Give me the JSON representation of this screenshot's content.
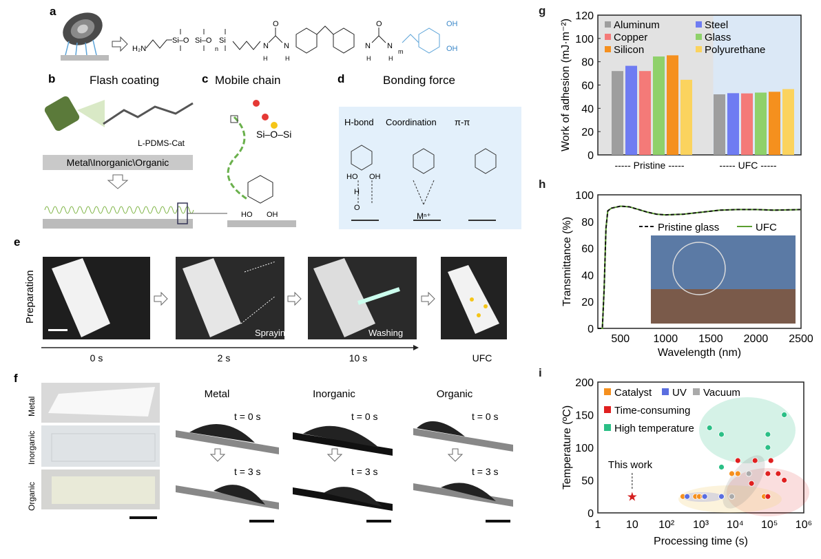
{
  "panels": {
    "a": {
      "label": "a",
      "formula_left": "H₂N",
      "formula_si": [
        "Si–O",
        "Si–O",
        "Si"
      ],
      "n": "n",
      "m": "m",
      "oh": [
        "OH",
        "OH"
      ],
      "nh": [
        "H",
        "N",
        "N",
        "H",
        "H",
        "N",
        "N",
        "H"
      ],
      "o": [
        "O",
        "O"
      ]
    },
    "b": {
      "label": "b",
      "title": "Flash coating",
      "molecule": "L-PDMS-Cat",
      "substrate": "Metal\\Inorganic\\Organic"
    },
    "c": {
      "label": "c",
      "title": "Mobile chain",
      "sios": "Si–O–Si",
      "ho": "HO",
      "oh": "OH"
    },
    "d": {
      "label": "d",
      "title": "Bonding force",
      "types": [
        "H-bond",
        "Coordination",
        "π-π"
      ],
      "ho": "HO",
      "oh": "OH",
      "h": "H",
      "o": "O",
      "metal": "Mⁿ⁺"
    },
    "e": {
      "label": "e",
      "row_label": "Preparation",
      "steps": [
        "Spraying",
        "Washing"
      ],
      "times": [
        "0 s",
        "2 s",
        "10 s",
        "UFC"
      ]
    },
    "f": {
      "label": "f",
      "row_labels": [
        "Metal",
        "Inorganic",
        "Organic"
      ],
      "columns": [
        "Metal",
        "Inorganic",
        "Organic"
      ],
      "t0": "t = 0 s",
      "t3": "t = 3 s"
    },
    "g": {
      "label": "g"
    },
    "h": {
      "label": "h"
    },
    "i": {
      "label": "i"
    }
  },
  "chart_data": [
    {
      "panel": "g",
      "type": "bar",
      "ylabel": "Work of adhesion (mJ·m⁻²)",
      "ylim": [
        0,
        120
      ],
      "yticks": [
        0,
        20,
        40,
        60,
        80,
        100,
        120
      ],
      "categories": [
        "----- Pristine -----",
        "----- UFC -----"
      ],
      "legend_placement": "top",
      "series": [
        {
          "name": "Aluminum",
          "color": "#9e9e9e",
          "values": [
            72,
            52
          ]
        },
        {
          "name": "Steel",
          "color": "#6f7cf2",
          "values": [
            76.5,
            53
          ]
        },
        {
          "name": "Copper",
          "color": "#f47a78",
          "values": [
            72,
            52.8
          ]
        },
        {
          "name": "Glass",
          "color": "#8fd16a",
          "values": [
            84.5,
            53.5
          ]
        },
        {
          "name": "Silicon",
          "color": "#f5901e",
          "values": [
            85.5,
            54.2
          ]
        },
        {
          "name": "Polyurethane",
          "color": "#fbd35e",
          "values": [
            64.5,
            56.5
          ]
        }
      ]
    },
    {
      "panel": "h",
      "type": "line",
      "xlabel": "Wavelength (nm)",
      "ylabel": "Transmittance (%)",
      "xlim": [
        250,
        2500
      ],
      "ylim": [
        0,
        100
      ],
      "xticks": [
        500,
        1000,
        1500,
        2000,
        2500
      ],
      "yticks": [
        0,
        20,
        40,
        60,
        80,
        100
      ],
      "legend_placement": "top-center",
      "series": [
        {
          "name": "Pristine glass",
          "color": "#111111",
          "style": "dashed",
          "x": [
            250,
            300,
            320,
            340,
            360,
            400,
            500,
            600,
            700,
            800,
            900,
            1000,
            1200,
            1400,
            1600,
            1800,
            2000,
            2200,
            2400,
            2500
          ],
          "y": [
            0,
            0,
            30,
            75,
            88,
            90,
            91.5,
            91,
            89,
            87,
            85.5,
            85,
            85.5,
            87,
            88.5,
            89,
            89,
            88.5,
            88.8,
            89
          ]
        },
        {
          "name": "UFC",
          "color": "#5a9e2f",
          "style": "solid",
          "x": [
            250,
            300,
            320,
            340,
            360,
            400,
            500,
            600,
            700,
            800,
            900,
            1000,
            1200,
            1400,
            1600,
            1800,
            2000,
            2200,
            2400,
            2500
          ],
          "y": [
            0,
            0,
            30,
            75,
            88,
            90,
            91.5,
            91,
            89,
            87,
            85.5,
            85,
            85.5,
            87,
            88.5,
            89,
            89,
            88.5,
            88.8,
            89
          ]
        }
      ]
    },
    {
      "panel": "i",
      "type": "scatter",
      "xlabel": "Processing time (s)",
      "ylabel": "Temperature (ºC)",
      "xscale": "log",
      "xlim": [
        1,
        1000000
      ],
      "ylim": [
        0,
        200
      ],
      "xticks": [
        "1",
        "10",
        "10²",
        "10³",
        "10⁴",
        "10⁵",
        "10⁶"
      ],
      "yticks": [
        0,
        50,
        100,
        150,
        200
      ],
      "annotation": "This work",
      "legend_placement": "top-left",
      "series": [
        {
          "name": "Catalyst",
          "color": "#f5901e",
          "points": [
            [
              300,
              25
            ],
            [
              700,
              25
            ],
            [
              900,
              25
            ],
            [
              1200,
              25
            ],
            [
              8000,
              60
            ],
            [
              12000,
              60
            ],
            [
              70000,
              25
            ]
          ]
        },
        {
          "name": "UV",
          "color": "#5a6ee0",
          "points": [
            [
              400,
              25
            ],
            [
              1300,
              25
            ],
            [
              4000,
              25
            ]
          ]
        },
        {
          "name": "Vacuum",
          "color": "#aaaaaa",
          "points": [
            [
              8000,
              25
            ],
            [
              25000,
              60
            ]
          ]
        },
        {
          "name": "Time-consuming",
          "color": "#e02020",
          "points": [
            [
              12000,
              80
            ],
            [
              38000,
              80
            ],
            [
              110000,
              80
            ],
            [
              90000,
              60
            ],
            [
              180000,
              60
            ],
            [
              30000,
              45
            ],
            [
              270000,
              50
            ],
            [
              90000,
              25
            ]
          ]
        },
        {
          "name": "High temperature",
          "color": "#2bbf86",
          "points": [
            [
              1800,
              130
            ],
            [
              4000,
              120
            ],
            [
              4000,
              70
            ],
            [
              90000,
              120
            ],
            [
              90000,
              100
            ],
            [
              270000,
              150
            ]
          ]
        },
        {
          "name": "This work",
          "color": "#d42020",
          "points": [
            [
              10,
              25
            ]
          ]
        }
      ]
    }
  ]
}
